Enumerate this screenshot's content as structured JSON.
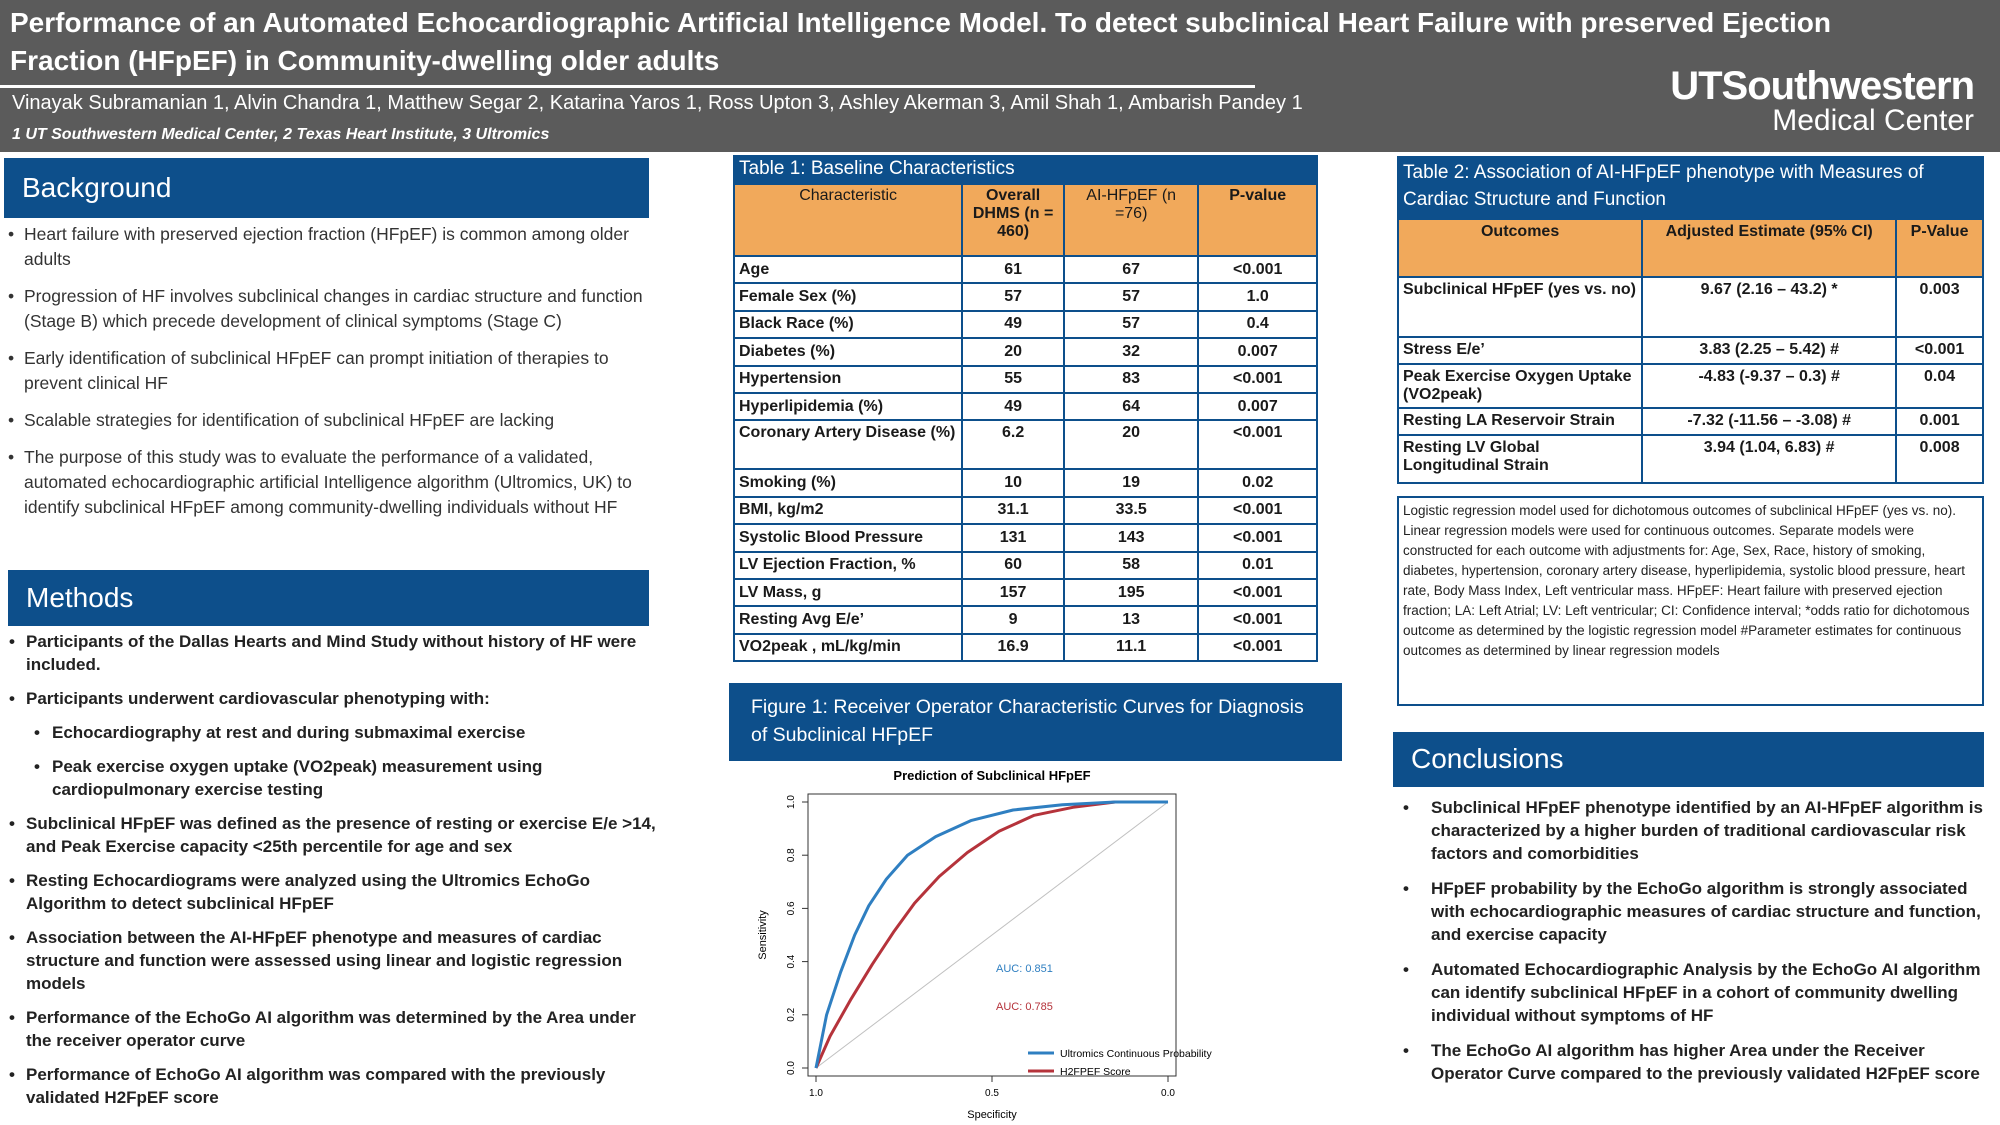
{
  "header": {
    "title": "Performance of an Automated Echocardiographic Artificial Intelligence Model. To detect subclinical Heart Failure with preserved Ejection Fraction (HFpEF) in Community-dwelling older adults",
    "authors": "Vinayak Subramanian 1, Alvin Chandra 1, Matthew Segar 2, Katarina Yaros 1, Ross Upton 3, Ashley Akerman 3, Amil Shah 1, Ambarish Pandey 1",
    "affiliations": "1 UT Southwestern Medical Center, 2 Texas Heart Institute, 3 Ultromics",
    "logo_top": "UTSouthwestern",
    "logo_bottom": "Medical Center"
  },
  "background": {
    "heading": "Background",
    "items": [
      "Heart failure with preserved ejection fraction (HFpEF) is common among older adults",
      "Progression of HF involves subclinical changes in cardiac structure and function (Stage B) which precede development of clinical symptoms (Stage C)",
      "Early identification of subclinical HFpEF can prompt initiation of therapies to prevent clinical HF",
      "Scalable strategies for identification of subclinical HFpEF are lacking",
      "The purpose of this study was to evaluate the performance of a validated, automated echocardiographic artificial Intelligence algorithm (Ultromics, UK) to identify subclinical HFpEF among community-dwelling individuals without HF"
    ]
  },
  "methods": {
    "heading": "Methods",
    "items": [
      "Participants of the Dallas Hearts and Mind Study without history of HF were included.",
      "Participants underwent cardiovascular phenotyping with:",
      "Echocardiography at rest and during submaximal exercise",
      "Peak exercise oxygen uptake (VO2peak) measurement using cardiopulmonary exercise testing",
      "Subclinical HFpEF was defined as the presence of resting or exercise E/e >14, and Peak Exercise capacity <25th percentile for age and sex",
      "Resting Echocardiograms were analyzed using the Ultromics EchoGo Algorithm to detect subclinical HFpEF",
      "Association between the AI-HFpEF phenotype and measures of cardiac structure and function were assessed using linear and logistic regression models",
      "Performance of the EchoGo AI algorithm was determined by the Area under the receiver operator curve",
      "Performance of EchoGo AI algorithm was compared with the previously validated H2FpEF score"
    ]
  },
  "table1": {
    "caption": "Table 1: Baseline Characteristics",
    "headers": [
      "Characteristic",
      "Overall DHMS (n = 460)",
      "AI-HFpEF (n =76)",
      "P-value"
    ],
    "rows": [
      [
        "Age",
        "61",
        "67",
        "<0.001"
      ],
      [
        "Female Sex (%)",
        "57",
        "57",
        "1.0"
      ],
      [
        "Black Race (%)",
        "49",
        "57",
        "0.4"
      ],
      [
        "Diabetes (%)",
        "20",
        "32",
        "0.007"
      ],
      [
        "Hypertension",
        "55",
        "83",
        "<0.001"
      ],
      [
        "Hyperlipidemia (%)",
        "49",
        "64",
        "0.007"
      ],
      [
        "Coronary Artery Disease (%)",
        "6.2",
        "20",
        "<0.001"
      ],
      [
        "Smoking (%)",
        "10",
        "19",
        "0.02"
      ],
      [
        "BMI, kg/m2",
        "31.1",
        "33.5",
        "<0.001"
      ],
      [
        "Systolic Blood Pressure",
        "131",
        "143",
        "<0.001"
      ],
      [
        "LV Ejection Fraction, %",
        "60",
        "58",
        "0.01"
      ],
      [
        "LV Mass, g",
        "157",
        "195",
        "<0.001"
      ],
      [
        "Resting Avg E/e’",
        "9",
        "13",
        "<0.001"
      ],
      [
        "VO2peak , mL/kg/min",
        "16.9",
        "11.1",
        "<0.001"
      ]
    ]
  },
  "figure": {
    "caption": "Figure 1: Receiver Operator Characteristic Curves for Diagnosis of Subclinical HFpEF"
  },
  "chart_data": {
    "type": "line",
    "title": "Prediction of Subclinical HFpEF",
    "xlabel": "Specificity",
    "ylabel": "Sensitivity",
    "xlim": [
      1.0,
      0.0
    ],
    "ylim": [
      0.0,
      1.0
    ],
    "x_ticks": [
      "1.0",
      "0.5",
      "0.0"
    ],
    "y_ticks": [
      "0.0",
      "0.2",
      "0.4",
      "0.6",
      "0.8",
      "1.0"
    ],
    "series": [
      {
        "name": "Ultromics Continuous Probability",
        "color": "#2f7fc1",
        "x": [
          1.0,
          0.97,
          0.93,
          0.89,
          0.85,
          0.8,
          0.74,
          0.66,
          0.56,
          0.44,
          0.3,
          0.15,
          0.0
        ],
        "y": [
          0.0,
          0.2,
          0.36,
          0.5,
          0.61,
          0.71,
          0.8,
          0.87,
          0.93,
          0.97,
          0.99,
          1.0,
          1.0
        ]
      },
      {
        "name": "H2FPEF Score",
        "color": "#b5333b",
        "x": [
          1.0,
          0.96,
          0.9,
          0.84,
          0.78,
          0.72,
          0.65,
          0.57,
          0.48,
          0.38,
          0.27,
          0.15,
          0.0
        ],
        "y": [
          0.0,
          0.12,
          0.26,
          0.39,
          0.51,
          0.62,
          0.72,
          0.81,
          0.89,
          0.95,
          0.98,
          1.0,
          1.0
        ]
      },
      {
        "name": "",
        "color": "#c0c0c0",
        "x": [
          1.0,
          0.0
        ],
        "y": [
          0.0,
          1.0
        ]
      }
    ],
    "annotations": [
      {
        "text": "AUC: 0.851",
        "color": "#2f7fc1"
      },
      {
        "text": "AUC: 0.785",
        "color": "#b5333b"
      }
    ],
    "legend_position": "bottom-right",
    "grid": false
  },
  "table2": {
    "caption": "Table 2: Association of AI-HFpEF phenotype with Measures of Cardiac Structure and Function",
    "headers": [
      "Outcomes",
      "Adjusted Estimate (95% CI)",
      "P-Value"
    ],
    "rows": [
      [
        "Subclinical HFpEF (yes vs. no)",
        "9.67 (2.16 – 43.2) *",
        "0.003"
      ],
      [
        "Stress E/e’",
        "3.83 (2.25 – 5.42) #",
        "<0.001"
      ],
      [
        "Peak Exercise Oxygen Uptake (VO2peak)",
        "-4.83 (-9.37 – 0.3) #",
        "0.04"
      ],
      [
        "Resting LA Reservoir Strain",
        "-7.32 (-11.56 – -3.08) #",
        "0.001"
      ],
      [
        "Resting LV Global Longitudinal Strain",
        "3.94 (1.04, 6.83) #",
        "0.008"
      ]
    ],
    "note": "Logistic regression model used for dichotomous outcomes of subclinical HFpEF (yes vs. no). Linear regression models were used for continuous outcomes. Separate models were constructed for each outcome with adjustments for: Age, Sex, Race, history of smoking, diabetes, hypertension, coronary artery disease, hyperlipidemia, systolic blood pressure, heart rate, Body Mass Index, Left ventricular mass. HFpEF: Heart failure with preserved ejection fraction; LA: Left Atrial; LV: Left ventricular; CI: Confidence interval; *odds ratio for dichotomous outcome as determined by the logistic regression model #Parameter estimates for continuous outcomes as determined by linear regression models"
  },
  "conclusions": {
    "heading": "Conclusions",
    "items": [
      "Subclinical HFpEF phenotype identified by an AI-HFpEF algorithm is characterized by a higher burden of traditional cardiovascular risk factors and comorbidities",
      "HFpEF probability by the EchoGo algorithm is strongly associated with echocardiographic measures of cardiac structure and function, and exercise capacity",
      "Automated Echocardiographic Analysis by the EchoGo AI algorithm can identify subclinical HFpEF in a cohort of community dwelling individual without symptoms of HF",
      "The EchoGo AI algorithm has higher Area under the Receiver Operator Curve compared to the previously validated H2FpEF score"
    ]
  }
}
